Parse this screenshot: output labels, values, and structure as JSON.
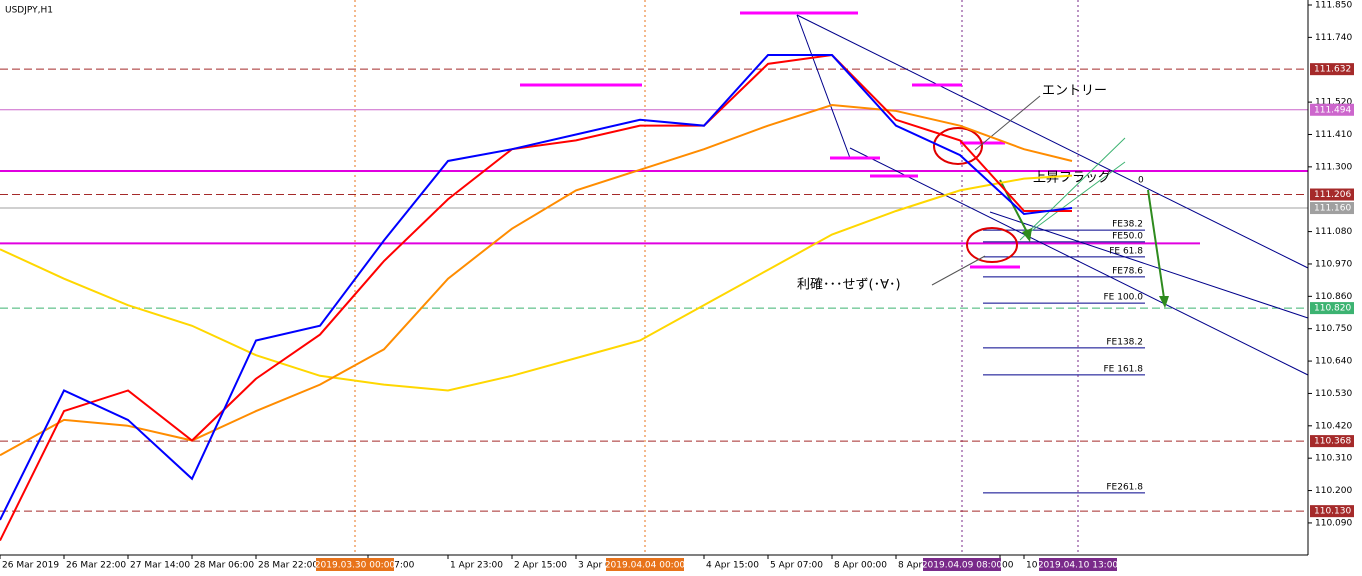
{
  "chart_data": {
    "type": "line",
    "title": "USDJPY,H1",
    "x": [
      0,
      16,
      32,
      48,
      64,
      80,
      96,
      112,
      128,
      144,
      160,
      176,
      192,
      208,
      224,
      240,
      256,
      268
    ],
    "xlim": [
      0,
      327
    ],
    "ylim": [
      109.981,
      111.867
    ],
    "series": [
      {
        "color": "#ffd700",
        "values": [
          111.02,
          110.92,
          110.83,
          110.76,
          110.66,
          110.59,
          110.56,
          110.54,
          110.59,
          110.65,
          110.71,
          110.83,
          110.95,
          111.07,
          111.15,
          111.22,
          111.26,
          111.27
        ]
      },
      {
        "color": "#ff8c00",
        "values": [
          110.32,
          110.44,
          110.42,
          110.37,
          110.47,
          110.56,
          110.68,
          110.92,
          111.09,
          111.22,
          111.29,
          111.36,
          111.44,
          111.51,
          111.49,
          111.44,
          111.36,
          111.32
        ]
      },
      {
        "color": "#ff0000",
        "values": [
          110.03,
          110.47,
          110.54,
          110.37,
          110.58,
          110.73,
          110.98,
          111.19,
          111.36,
          111.39,
          111.44,
          111.44,
          111.65,
          111.68,
          111.46,
          111.39,
          111.15,
          111.15
        ]
      },
      {
        "color": "#0000ff",
        "values": [
          110.1,
          110.54,
          110.44,
          110.24,
          110.71,
          110.76,
          111.05,
          111.32,
          111.36,
          111.41,
          111.46,
          111.44,
          111.68,
          111.68,
          111.44,
          111.34,
          111.14,
          111.16
        ]
      }
    ],
    "yticks": [
      {
        "value": 111.85,
        "label": "111.850"
      },
      {
        "value": 111.74,
        "label": "111.740"
      },
      {
        "value": 111.52,
        "label": "111.520"
      },
      {
        "value": 111.41,
        "label": "111.410"
      },
      {
        "value": 111.3,
        "label": "111.300"
      },
      {
        "value": 111.08,
        "label": "111.080"
      },
      {
        "value": 110.97,
        "label": "110.970"
      },
      {
        "value": 110.86,
        "label": "110.860"
      },
      {
        "value": 110.75,
        "label": "110.750"
      },
      {
        "value": 110.64,
        "label": "110.640"
      },
      {
        "value": 110.53,
        "label": "110.530"
      },
      {
        "value": 110.42,
        "label": "110.420"
      },
      {
        "value": 110.31,
        "label": "110.310"
      },
      {
        "value": 110.2,
        "label": "110.200"
      },
      {
        "value": 110.09,
        "label": "110.090"
      }
    ],
    "xticks": [
      {
        "value": 0,
        "label": "26 Mar 2019"
      },
      {
        "value": 16,
        "label": "26 Mar 22:00"
      },
      {
        "value": 32,
        "label": "27 Mar 14:00"
      },
      {
        "value": 48,
        "label": "28 Mar 06:00"
      },
      {
        "value": 64,
        "label": "28 Mar 22:00"
      },
      {
        "value": 92,
        "label": "Apr 07:00"
      },
      {
        "value": 112,
        "label": "1 Apr 23:00"
      },
      {
        "value": 128,
        "label": "2 Apr 15:00"
      },
      {
        "value": 144,
        "label": "3 Apr 0"
      },
      {
        "value": 176,
        "label": "4 Apr 15:00"
      },
      {
        "value": 192,
        "label": "5 Apr 07:00"
      },
      {
        "value": 208,
        "label": "8 Apr 00:00"
      },
      {
        "value": 224,
        "label": "8 Apr"
      },
      {
        "value": 250,
        "label": "00"
      },
      {
        "value": 256,
        "label": "10"
      }
    ],
    "levels": [
      {
        "value": 111.632,
        "label": "111.632",
        "color": "#a52a2a",
        "style": "dashed"
      },
      {
        "value": 111.494,
        "label": "111.494",
        "color": "#cc66cc",
        "style": "solid"
      },
      {
        "value": 111.206,
        "label": "111.206",
        "color": "#a52a2a",
        "style": "dashed"
      },
      {
        "value": 111.16,
        "label": "111.160",
        "color": "#a0a0a0",
        "style": "solid"
      },
      {
        "value": 110.82,
        "label": "110.820",
        "color": "#3cb371",
        "style": "dashed"
      },
      {
        "value": 110.368,
        "label": "110.368",
        "color": "#a52a2a",
        "style": "dashed"
      },
      {
        "value": 110.13,
        "label": "110.130",
        "color": "#a52a2a",
        "style": "dashed"
      }
    ],
    "zones": [
      111.286,
      111.04
    ],
    "time_markers": [
      {
        "x": 88.75,
        "label": "2019.03.30 00:00",
        "color": "#e8731a"
      },
      {
        "x": 161.25,
        "label": "2019.04.04 00:00",
        "color": "#e8731a"
      },
      {
        "x": 240.5,
        "label": "2019.04.09 08:00",
        "color": "#7a2a8a"
      },
      {
        "x": 269.5,
        "label": "2019.04.10 13:00",
        "color": "#7a2a8a"
      }
    ],
    "fibo": [
      {
        "label": "FE38.2",
        "price": 111.085
      },
      {
        "label": "FE50.0",
        "price": 111.045
      },
      {
        "label": "FE 61.8",
        "price": 110.994
      },
      {
        "label": "FE78.6",
        "price": 110.926
      },
      {
        "label": "FE 100.0",
        "price": 110.837
      },
      {
        "label": "FE138.2",
        "price": 110.685
      },
      {
        "label": "FE 161.8",
        "price": 110.593
      },
      {
        "label": "FE261.8",
        "price": 110.192
      }
    ],
    "annotations": [
      "エントリー",
      "上昇フラッグ",
      "利確･･･せず(･∀･)",
      "0"
    ]
  }
}
